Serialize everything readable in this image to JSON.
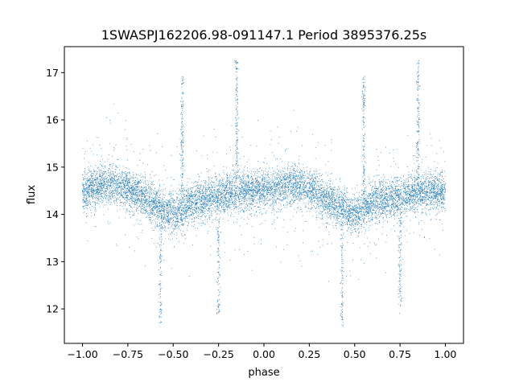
{
  "chart_data": {
    "type": "scatter",
    "title": "1SWASPJ162206.98-091147.1 Period 3895376.25s",
    "xlabel": "phase",
    "ylabel": "flux",
    "xlim": [
      -1.1,
      1.1
    ],
    "ylim": [
      11.27,
      17.55
    ],
    "xticks": [
      -1.0,
      -0.75,
      -0.5,
      -0.25,
      0.0,
      0.25,
      0.5,
      0.75,
      1.0
    ],
    "xtick_labels": [
      "−1.00",
      "−0.75",
      "−0.50",
      "−0.25",
      "0.00",
      "0.25",
      "0.50",
      "0.75",
      "1.00"
    ],
    "yticks": [
      12,
      13,
      14,
      15,
      16,
      17
    ],
    "ytick_labels": [
      "12",
      "13",
      "14",
      "15",
      "16",
      "17"
    ],
    "grid": false,
    "legend": "none",
    "point_color": "#1f77b4",
    "series": [
      {
        "description_of_shape": "phase-folded light curve repeated over two cycles",
        "phase_range": [
          -1.0,
          1.0
        ],
        "flux_median_by_phase": [
          {
            "x": -1.0,
            "y": 14.5
          },
          {
            "x": -0.85,
            "y": 14.65
          },
          {
            "x": -0.75,
            "y": 14.55
          },
          {
            "x": -0.6,
            "y": 14.2
          },
          {
            "x": -0.5,
            "y": 14.0
          },
          {
            "x": -0.4,
            "y": 14.25
          },
          {
            "x": -0.25,
            "y": 14.4
          },
          {
            "x": -0.1,
            "y": 14.5
          },
          {
            "x": 0.0,
            "y": 14.5
          },
          {
            "x": 0.15,
            "y": 14.65
          },
          {
            "x": 0.25,
            "y": 14.55
          },
          {
            "x": 0.4,
            "y": 14.2
          },
          {
            "x": 0.5,
            "y": 14.0
          },
          {
            "x": 0.6,
            "y": 14.25
          },
          {
            "x": 0.75,
            "y": 14.4
          },
          {
            "x": 0.9,
            "y": 14.5
          },
          {
            "x": 1.0,
            "y": 14.5
          }
        ],
        "outlier_spikes_high": [
          -0.45,
          -0.15,
          0.55,
          0.85
        ],
        "outlier_spikes_low": [
          -0.57,
          -0.25,
          0.43,
          0.75
        ]
      }
    ]
  }
}
